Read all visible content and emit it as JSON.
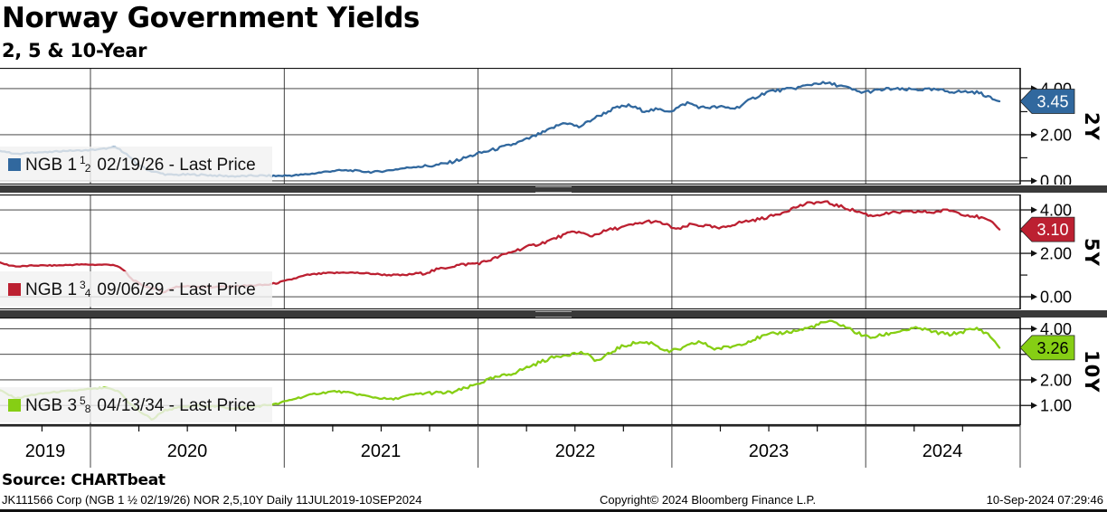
{
  "header": {
    "title": "Norway Government Yields",
    "subtitle": "2, 5 & 10-Year"
  },
  "source_line": "Source: CHARTbeat",
  "footer": {
    "left": "JK111566 Corp (NGB 1 ½  02/19/26) NOR 2,5,10Y   Daily 11JUL2019-10SEP2024",
    "center": "Copyright© 2024 Bloomberg Finance L.P.",
    "right": "10-Sep-2024 07:29:46"
  },
  "x_axis": {
    "years": [
      "2019",
      "2020",
      "2021",
      "2022",
      "2023",
      "2024"
    ]
  },
  "chart_data": {
    "type": "line",
    "title": "Norway Government Yields",
    "subtitle": "2, 5 & 10-Year",
    "x_domain": [
      2019.53,
      2024.69
    ],
    "x_tick_labels": [
      "2019",
      "2020",
      "2021",
      "2022",
      "2023",
      "2024"
    ],
    "grid": true,
    "legend_position": "bottom-left-inside",
    "panels": [
      {
        "id": "2y",
        "axis_label": "2Y",
        "color": "#31689e",
        "legend": {
          "prefix": "NGB 1",
          "frac_num": "1",
          "frac_den": "2",
          "suffix": "02/19/26 - Last Price"
        },
        "last_price": 3.45,
        "last_price_label": "3.45",
        "tag_text_color": "#ffffff",
        "y_ticks_labeled": [
          0.0,
          2.0,
          4.0
        ],
        "y_ticks_minor": [
          1.0,
          3.0
        ],
        "ylim": [
          -0.16,
          4.9
        ],
        "series": [
          [
            2019.53,
            1.3
          ],
          [
            2019.58,
            1.22
          ],
          [
            2019.63,
            1.15
          ],
          [
            2019.7,
            1.22
          ],
          [
            2019.78,
            1.2
          ],
          [
            2019.88,
            1.28
          ],
          [
            2019.97,
            1.32
          ],
          [
            2020.05,
            1.38
          ],
          [
            2020.13,
            1.45
          ],
          [
            2020.18,
            1.2
          ],
          [
            2020.23,
            0.8
          ],
          [
            2020.3,
            0.5
          ],
          [
            2020.4,
            0.32
          ],
          [
            2020.55,
            0.27
          ],
          [
            2020.7,
            0.24
          ],
          [
            2020.85,
            0.2
          ],
          [
            2020.95,
            0.16
          ],
          [
            2021.05,
            0.22
          ],
          [
            2021.15,
            0.3
          ],
          [
            2021.25,
            0.38
          ],
          [
            2021.35,
            0.42
          ],
          [
            2021.45,
            0.4
          ],
          [
            2021.55,
            0.48
          ],
          [
            2021.65,
            0.58
          ],
          [
            2021.75,
            0.72
          ],
          [
            2021.85,
            0.9
          ],
          [
            2021.95,
            1.08
          ],
          [
            2022.05,
            1.28
          ],
          [
            2022.15,
            1.55
          ],
          [
            2022.25,
            1.8
          ],
          [
            2022.35,
            2.05
          ],
          [
            2022.45,
            2.45
          ],
          [
            2022.52,
            2.3
          ],
          [
            2022.6,
            2.7
          ],
          [
            2022.7,
            3.05
          ],
          [
            2022.78,
            3.2
          ],
          [
            2022.85,
            3.05
          ],
          [
            2022.92,
            3.15
          ],
          [
            2023.0,
            3.1
          ],
          [
            2023.08,
            3.4
          ],
          [
            2023.15,
            3.2
          ],
          [
            2023.25,
            3.3
          ],
          [
            2023.33,
            3.25
          ],
          [
            2023.42,
            3.6
          ],
          [
            2023.5,
            3.85
          ],
          [
            2023.58,
            3.95
          ],
          [
            2023.67,
            4.1
          ],
          [
            2023.75,
            4.2
          ],
          [
            2023.82,
            4.1
          ],
          [
            2023.9,
            3.95
          ],
          [
            2023.97,
            3.8
          ],
          [
            2024.05,
            3.9
          ],
          [
            2024.12,
            3.95
          ],
          [
            2024.2,
            3.88
          ],
          [
            2024.28,
            3.95
          ],
          [
            2024.37,
            4.02
          ],
          [
            2024.45,
            3.95
          ],
          [
            2024.52,
            3.9
          ],
          [
            2024.58,
            3.85
          ],
          [
            2024.63,
            3.7
          ],
          [
            2024.66,
            3.55
          ],
          [
            2024.69,
            3.45
          ]
        ]
      },
      {
        "id": "5y",
        "axis_label": "5Y",
        "color": "#bc2031",
        "legend": {
          "prefix": "NGB 1",
          "frac_num": "3",
          "frac_den": "4",
          "suffix": "09/06/29 - Last Price"
        },
        "last_price": 3.1,
        "last_price_label": "3.10",
        "tag_text_color": "#ffffff",
        "y_ticks_labeled": [
          0.0,
          2.0,
          4.0
        ],
        "y_ticks_minor": [
          1.0,
          3.0
        ],
        "ylim": [
          -0.58,
          4.71
        ],
        "series": [
          [
            2019.53,
            1.55
          ],
          [
            2019.58,
            1.42
          ],
          [
            2019.63,
            1.35
          ],
          [
            2019.72,
            1.42
          ],
          [
            2019.82,
            1.45
          ],
          [
            2019.92,
            1.48
          ],
          [
            2020.02,
            1.47
          ],
          [
            2020.12,
            1.5
          ],
          [
            2020.17,
            1.3
          ],
          [
            2020.21,
            0.9
          ],
          [
            2020.26,
            0.6
          ],
          [
            2020.33,
            0.38
          ],
          [
            2020.38,
            0.22
          ],
          [
            2020.44,
            0.48
          ],
          [
            2020.52,
            0.52
          ],
          [
            2020.62,
            0.46
          ],
          [
            2020.72,
            0.42
          ],
          [
            2020.82,
            0.48
          ],
          [
            2020.92,
            0.55
          ],
          [
            2021.02,
            0.72
          ],
          [
            2021.12,
            0.95
          ],
          [
            2021.22,
            1.08
          ],
          [
            2021.32,
            1.15
          ],
          [
            2021.42,
            1.08
          ],
          [
            2021.52,
            1.02
          ],
          [
            2021.62,
            1.05
          ],
          [
            2021.72,
            1.18
          ],
          [
            2021.82,
            1.32
          ],
          [
            2021.92,
            1.5
          ],
          [
            2022.02,
            1.62
          ],
          [
            2022.12,
            1.85
          ],
          [
            2022.22,
            2.1
          ],
          [
            2022.32,
            2.4
          ],
          [
            2022.42,
            2.75
          ],
          [
            2022.5,
            2.95
          ],
          [
            2022.58,
            2.7
          ],
          [
            2022.68,
            3.1
          ],
          [
            2022.78,
            3.35
          ],
          [
            2022.88,
            3.5
          ],
          [
            2022.95,
            3.4
          ],
          [
            2023.03,
            3.15
          ],
          [
            2023.1,
            3.45
          ],
          [
            2023.18,
            3.35
          ],
          [
            2023.25,
            3.15
          ],
          [
            2023.35,
            3.4
          ],
          [
            2023.45,
            3.6
          ],
          [
            2023.55,
            3.8
          ],
          [
            2023.65,
            4.05
          ],
          [
            2023.73,
            4.25
          ],
          [
            2023.8,
            4.3
          ],
          [
            2023.87,
            4.15
          ],
          [
            2023.95,
            3.9
          ],
          [
            2024.03,
            3.65
          ],
          [
            2024.1,
            3.8
          ],
          [
            2024.18,
            3.95
          ],
          [
            2024.27,
            4.0
          ],
          [
            2024.35,
            3.92
          ],
          [
            2024.43,
            4.02
          ],
          [
            2024.5,
            3.88
          ],
          [
            2024.57,
            3.8
          ],
          [
            2024.62,
            3.65
          ],
          [
            2024.66,
            3.4
          ],
          [
            2024.69,
            3.1
          ]
        ]
      },
      {
        "id": "10y",
        "axis_label": "10Y",
        "color": "#86ce14",
        "legend": {
          "prefix": "NGB 3",
          "frac_num": "5",
          "frac_den": "8",
          "suffix": "04/13/34 - Last Price"
        },
        "last_price": 3.26,
        "last_price_label": "3.26",
        "tag_text_color": "#000000",
        "y_ticks_labeled": [
          1.0,
          2.0,
          3.0,
          4.0
        ],
        "y_ticks_minor": [],
        "ylim": [
          0.23,
          4.44
        ],
        "series": [
          [
            2019.53,
            1.58
          ],
          [
            2019.58,
            1.4
          ],
          [
            2019.62,
            1.28
          ],
          [
            2019.7,
            1.42
          ],
          [
            2019.8,
            1.5
          ],
          [
            2019.9,
            1.58
          ],
          [
            2020.0,
            1.68
          ],
          [
            2020.08,
            1.72
          ],
          [
            2020.15,
            1.55
          ],
          [
            2020.2,
            1.1
          ],
          [
            2020.26,
            0.75
          ],
          [
            2020.32,
            0.48
          ],
          [
            2020.38,
            0.85
          ],
          [
            2020.46,
            0.92
          ],
          [
            2020.56,
            0.95
          ],
          [
            2020.66,
            0.92
          ],
          [
            2020.76,
            0.88
          ],
          [
            2020.86,
            0.92
          ],
          [
            2020.96,
            1.0
          ],
          [
            2021.06,
            1.28
          ],
          [
            2021.16,
            1.48
          ],
          [
            2021.26,
            1.55
          ],
          [
            2021.36,
            1.48
          ],
          [
            2021.46,
            1.38
          ],
          [
            2021.56,
            1.28
          ],
          [
            2021.66,
            1.42
          ],
          [
            2021.76,
            1.52
          ],
          [
            2021.86,
            1.55
          ],
          [
            2021.96,
            1.68
          ],
          [
            2022.06,
            1.92
          ],
          [
            2022.16,
            2.18
          ],
          [
            2022.26,
            2.48
          ],
          [
            2022.36,
            2.72
          ],
          [
            2022.46,
            2.95
          ],
          [
            2022.54,
            3.1
          ],
          [
            2022.62,
            2.8
          ],
          [
            2022.72,
            3.25
          ],
          [
            2022.82,
            3.5
          ],
          [
            2022.9,
            3.55
          ],
          [
            2022.98,
            3.2
          ],
          [
            2023.06,
            3.28
          ],
          [
            2023.14,
            3.48
          ],
          [
            2023.22,
            3.22
          ],
          [
            2023.32,
            3.35
          ],
          [
            2023.42,
            3.52
          ],
          [
            2023.52,
            3.68
          ],
          [
            2023.62,
            3.85
          ],
          [
            2023.72,
            4.05
          ],
          [
            2023.8,
            4.22
          ],
          [
            2023.87,
            4.1
          ],
          [
            2023.95,
            3.85
          ],
          [
            2024.02,
            3.72
          ],
          [
            2024.1,
            3.85
          ],
          [
            2024.18,
            3.95
          ],
          [
            2024.28,
            4.05
          ],
          [
            2024.36,
            3.95
          ],
          [
            2024.44,
            3.88
          ],
          [
            2024.52,
            3.95
          ],
          [
            2024.58,
            3.98
          ],
          [
            2024.63,
            3.75
          ],
          [
            2024.66,
            3.55
          ],
          [
            2024.69,
            3.26
          ]
        ]
      }
    ]
  }
}
